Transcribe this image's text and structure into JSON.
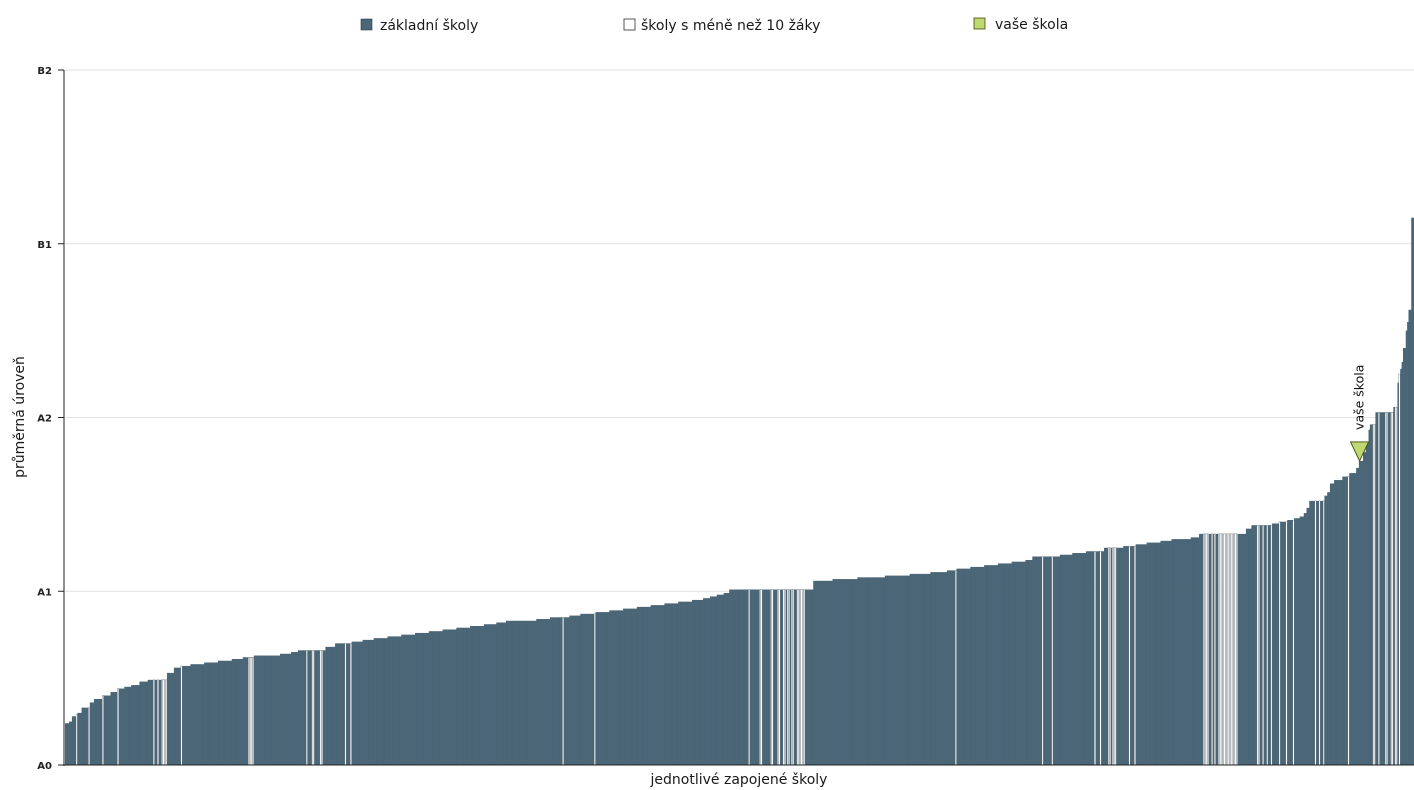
{
  "chart_data": {
    "type": "bar",
    "title": "",
    "xlabel": "jednotlivé zapojené školy",
    "ylabel": "průměrná úroveň",
    "y_ticks": [
      "A0",
      "A1",
      "A2",
      "B1",
      "B2"
    ],
    "ylim": [
      0,
      4
    ],
    "grid": true,
    "legend_placement": "top",
    "legend": [
      {
        "key": "zs",
        "label": "základní školy",
        "color": "#4a6677"
      },
      {
        "key": "small",
        "label": "školy s méně než 10 žáky",
        "color": "#ffffff"
      },
      {
        "key": "yours",
        "label": "vaše škola",
        "color": "#bfd870"
      }
    ],
    "segments": [
      {
        "value": 0.24,
        "count": 3,
        "kind": "zs"
      },
      {
        "value": 0.25,
        "count": 2,
        "kind": "zs"
      },
      {
        "value": 0.28,
        "count": 3,
        "kind": "zs"
      },
      {
        "value": 0.29,
        "count": 1,
        "kind": "small"
      },
      {
        "value": 0.3,
        "count": 3,
        "kind": "zs"
      },
      {
        "value": 0.33,
        "count": 5,
        "kind": "zs"
      },
      {
        "value": 0.33,
        "count": 1,
        "kind": "small"
      },
      {
        "value": 0.36,
        "count": 3,
        "kind": "zs"
      },
      {
        "value": 0.38,
        "count": 6,
        "kind": "zs"
      },
      {
        "value": 0.4,
        "count": 1,
        "kind": "small"
      },
      {
        "value": 0.4,
        "count": 5,
        "kind": "zs"
      },
      {
        "value": 0.42,
        "count": 5,
        "kind": "zs"
      },
      {
        "value": 0.44,
        "count": 1,
        "kind": "small"
      },
      {
        "value": 0.44,
        "count": 4,
        "kind": "zs"
      },
      {
        "value": 0.45,
        "count": 5,
        "kind": "zs"
      },
      {
        "value": 0.46,
        "count": 6,
        "kind": "zs"
      },
      {
        "value": 0.48,
        "count": 6,
        "kind": "zs"
      },
      {
        "value": 0.49,
        "count": 4,
        "kind": "zs"
      },
      {
        "value": 0.49,
        "count": 1,
        "kind": "small"
      },
      {
        "value": 0.49,
        "count": 2,
        "kind": "zs"
      },
      {
        "value": 0.49,
        "count": 1,
        "kind": "small"
      },
      {
        "value": 0.49,
        "count": 2,
        "kind": "zs"
      },
      {
        "value": 0.49,
        "count": 4,
        "kind": "small"
      },
      {
        "value": 0.53,
        "count": 5,
        "kind": "zs"
      },
      {
        "value": 0.56,
        "count": 5,
        "kind": "zs"
      },
      {
        "value": 0.57,
        "count": 1,
        "kind": "small"
      },
      {
        "value": 0.57,
        "count": 6,
        "kind": "zs"
      },
      {
        "value": 0.58,
        "count": 10,
        "kind": "zs"
      },
      {
        "value": 0.59,
        "count": 10,
        "kind": "zs"
      },
      {
        "value": 0.6,
        "count": 10,
        "kind": "zs"
      },
      {
        "value": 0.61,
        "count": 8,
        "kind": "zs"
      },
      {
        "value": 0.62,
        "count": 4,
        "kind": "zs"
      },
      {
        "value": 0.62,
        "count": 4,
        "kind": "small"
      },
      {
        "value": 0.63,
        "count": 8,
        "kind": "zs"
      },
      {
        "value": 0.63,
        "count": 11,
        "kind": "zs"
      },
      {
        "value": 0.64,
        "count": 8,
        "kind": "zs"
      },
      {
        "value": 0.65,
        "count": 5,
        "kind": "zs"
      },
      {
        "value": 0.66,
        "count": 6,
        "kind": "zs"
      },
      {
        "value": 0.66,
        "count": 1,
        "kind": "small"
      },
      {
        "value": 0.66,
        "count": 3,
        "kind": "zs"
      },
      {
        "value": 0.66,
        "count": 2,
        "kind": "small"
      },
      {
        "value": 0.66,
        "count": 4,
        "kind": "zs"
      },
      {
        "value": 0.66,
        "count": 2,
        "kind": "small"
      },
      {
        "value": 0.66,
        "count": 2,
        "kind": "zs"
      },
      {
        "value": 0.68,
        "count": 7,
        "kind": "zs"
      },
      {
        "value": 0.7,
        "count": 7,
        "kind": "zs"
      },
      {
        "value": 0.7,
        "count": 1,
        "kind": "small"
      },
      {
        "value": 0.7,
        "count": 3,
        "kind": "zs"
      },
      {
        "value": 0.7,
        "count": 1,
        "kind": "small"
      },
      {
        "value": 0.71,
        "count": 8,
        "kind": "zs"
      },
      {
        "value": 0.72,
        "count": 8,
        "kind": "zs"
      },
      {
        "value": 0.73,
        "count": 10,
        "kind": "zs"
      },
      {
        "value": 0.74,
        "count": 10,
        "kind": "zs"
      },
      {
        "value": 0.75,
        "count": 10,
        "kind": "zs"
      },
      {
        "value": 0.76,
        "count": 10,
        "kind": "zs"
      },
      {
        "value": 0.77,
        "count": 10,
        "kind": "zs"
      },
      {
        "value": 0.78,
        "count": 10,
        "kind": "zs"
      },
      {
        "value": 0.79,
        "count": 10,
        "kind": "zs"
      },
      {
        "value": 0.8,
        "count": 10,
        "kind": "zs"
      },
      {
        "value": 0.81,
        "count": 9,
        "kind": "zs"
      },
      {
        "value": 0.82,
        "count": 7,
        "kind": "zs"
      },
      {
        "value": 0.83,
        "count": 8,
        "kind": "zs"
      },
      {
        "value": 0.83,
        "count": 14,
        "kind": "zs"
      },
      {
        "value": 0.84,
        "count": 10,
        "kind": "zs"
      },
      {
        "value": 0.85,
        "count": 9,
        "kind": "zs"
      },
      {
        "value": 0.85,
        "count": 1,
        "kind": "small"
      },
      {
        "value": 0.85,
        "count": 4,
        "kind": "zs"
      },
      {
        "value": 0.86,
        "count": 8,
        "kind": "zs"
      },
      {
        "value": 0.87,
        "count": 10,
        "kind": "zs"
      },
      {
        "value": 0.87,
        "count": 1,
        "kind": "small"
      },
      {
        "value": 0.88,
        "count": 10,
        "kind": "zs"
      },
      {
        "value": 0.89,
        "count": 10,
        "kind": "zs"
      },
      {
        "value": 0.9,
        "count": 10,
        "kind": "zs"
      },
      {
        "value": 0.91,
        "count": 10,
        "kind": "zs"
      },
      {
        "value": 0.92,
        "count": 10,
        "kind": "zs"
      },
      {
        "value": 0.93,
        "count": 10,
        "kind": "zs"
      },
      {
        "value": 0.94,
        "count": 10,
        "kind": "zs"
      },
      {
        "value": 0.95,
        "count": 8,
        "kind": "zs"
      },
      {
        "value": 0.96,
        "count": 5,
        "kind": "zs"
      },
      {
        "value": 0.97,
        "count": 5,
        "kind": "zs"
      },
      {
        "value": 0.98,
        "count": 5,
        "kind": "zs"
      },
      {
        "value": 0.99,
        "count": 4,
        "kind": "zs"
      },
      {
        "value": 1.01,
        "count": 14,
        "kind": "zs"
      },
      {
        "value": 1.01,
        "count": 1,
        "kind": "small"
      },
      {
        "value": 1.01,
        "count": 7,
        "kind": "zs"
      },
      {
        "value": 1.01,
        "count": 2,
        "kind": "small"
      },
      {
        "value": 1.01,
        "count": 6,
        "kind": "zs"
      },
      {
        "value": 1.01,
        "count": 2,
        "kind": "small"
      },
      {
        "value": 1.01,
        "count": 3,
        "kind": "zs"
      },
      {
        "value": 1.01,
        "count": 2,
        "kind": "small"
      },
      {
        "value": 1.01,
        "count": 2,
        "kind": "zs"
      },
      {
        "value": 1.01,
        "count": 2,
        "kind": "small"
      },
      {
        "value": 1.01,
        "count": 1,
        "kind": "zs"
      },
      {
        "value": 1.01,
        "count": 2,
        "kind": "small"
      },
      {
        "value": 1.01,
        "count": 1,
        "kind": "zs"
      },
      {
        "value": 1.01,
        "count": 2,
        "kind": "small"
      },
      {
        "value": 1.01,
        "count": 2,
        "kind": "zs"
      },
      {
        "value": 1.01,
        "count": 6,
        "kind": "small"
      },
      {
        "value": 1.01,
        "count": 6,
        "kind": "zs"
      },
      {
        "value": 1.06,
        "count": 14,
        "kind": "zs"
      },
      {
        "value": 1.07,
        "count": 18,
        "kind": "zs"
      },
      {
        "value": 1.08,
        "count": 20,
        "kind": "zs"
      },
      {
        "value": 1.09,
        "count": 18,
        "kind": "zs"
      },
      {
        "value": 1.1,
        "count": 15,
        "kind": "zs"
      },
      {
        "value": 1.11,
        "count": 12,
        "kind": "zs"
      },
      {
        "value": 1.12,
        "count": 6,
        "kind": "zs"
      },
      {
        "value": 1.12,
        "count": 1,
        "kind": "small"
      },
      {
        "value": 1.13,
        "count": 10,
        "kind": "zs"
      },
      {
        "value": 1.14,
        "count": 10,
        "kind": "zs"
      },
      {
        "value": 1.15,
        "count": 10,
        "kind": "zs"
      },
      {
        "value": 1.16,
        "count": 10,
        "kind": "zs"
      },
      {
        "value": 1.17,
        "count": 10,
        "kind": "zs"
      },
      {
        "value": 1.18,
        "count": 5,
        "kind": "zs"
      },
      {
        "value": 1.2,
        "count": 7,
        "kind": "zs"
      },
      {
        "value": 1.2,
        "count": 1,
        "kind": "small"
      },
      {
        "value": 1.2,
        "count": 6,
        "kind": "zs"
      },
      {
        "value": 1.2,
        "count": 1,
        "kind": "small"
      },
      {
        "value": 1.2,
        "count": 5,
        "kind": "zs"
      },
      {
        "value": 1.21,
        "count": 9,
        "kind": "zs"
      },
      {
        "value": 1.22,
        "count": 10,
        "kind": "zs"
      },
      {
        "value": 1.23,
        "count": 6,
        "kind": "zs"
      },
      {
        "value": 1.23,
        "count": 1,
        "kind": "small"
      },
      {
        "value": 1.23,
        "count": 3,
        "kind": "zs"
      },
      {
        "value": 1.23,
        "count": 1,
        "kind": "small"
      },
      {
        "value": 1.23,
        "count": 2,
        "kind": "zs"
      },
      {
        "value": 1.25,
        "count": 3,
        "kind": "zs"
      },
      {
        "value": 1.25,
        "count": 2,
        "kind": "small"
      },
      {
        "value": 1.25,
        "count": 1,
        "kind": "zs"
      },
      {
        "value": 1.25,
        "count": 3,
        "kind": "small"
      },
      {
        "value": 1.25,
        "count": 5,
        "kind": "zs"
      },
      {
        "value": 1.26,
        "count": 4,
        "kind": "zs"
      },
      {
        "value": 1.26,
        "count": 1,
        "kind": "small"
      },
      {
        "value": 1.26,
        "count": 3,
        "kind": "zs"
      },
      {
        "value": 1.26,
        "count": 1,
        "kind": "small"
      },
      {
        "value": 1.27,
        "count": 8,
        "kind": "zs"
      },
      {
        "value": 1.28,
        "count": 10,
        "kind": "zs"
      },
      {
        "value": 1.29,
        "count": 8,
        "kind": "zs"
      },
      {
        "value": 1.3,
        "count": 10,
        "kind": "zs"
      },
      {
        "value": 1.3,
        "count": 4,
        "kind": "zs"
      },
      {
        "value": 1.31,
        "count": 4,
        "kind": "zs"
      },
      {
        "value": 1.31,
        "count": 2,
        "kind": "zs"
      },
      {
        "value": 1.33,
        "count": 3,
        "kind": "zs"
      },
      {
        "value": 1.33,
        "count": 4,
        "kind": "small"
      },
      {
        "value": 1.33,
        "count": 2,
        "kind": "zs"
      },
      {
        "value": 1.33,
        "count": 1,
        "kind": "small"
      },
      {
        "value": 1.33,
        "count": 1,
        "kind": "zs"
      },
      {
        "value": 1.33,
        "count": 1,
        "kind": "small"
      },
      {
        "value": 1.33,
        "count": 2,
        "kind": "zs"
      },
      {
        "value": 1.33,
        "count": 14,
        "kind": "small"
      },
      {
        "value": 1.33,
        "count": 6,
        "kind": "zs"
      },
      {
        "value": 1.36,
        "count": 4,
        "kind": "zs"
      },
      {
        "value": 1.38,
        "count": 4,
        "kind": "zs"
      },
      {
        "value": 1.38,
        "count": 2,
        "kind": "small"
      },
      {
        "value": 1.38,
        "count": 2,
        "kind": "zs"
      },
      {
        "value": 1.38,
        "count": 1,
        "kind": "small"
      },
      {
        "value": 1.38,
        "count": 2,
        "kind": "zs"
      },
      {
        "value": 1.38,
        "count": 1,
        "kind": "small"
      },
      {
        "value": 1.38,
        "count": 2,
        "kind": "zs"
      },
      {
        "value": 1.38,
        "count": 1,
        "kind": "small"
      },
      {
        "value": 1.39,
        "count": 5,
        "kind": "zs"
      },
      {
        "value": 1.4,
        "count": 1,
        "kind": "small"
      },
      {
        "value": 1.4,
        "count": 4,
        "kind": "zs"
      },
      {
        "value": 1.4,
        "count": 1,
        "kind": "small"
      },
      {
        "value": 1.41,
        "count": 4,
        "kind": "zs"
      },
      {
        "value": 1.41,
        "count": 1,
        "kind": "small"
      },
      {
        "value": 1.42,
        "count": 4,
        "kind": "zs"
      },
      {
        "value": 1.43,
        "count": 3,
        "kind": "zs"
      },
      {
        "value": 1.45,
        "count": 2,
        "kind": "zs"
      },
      {
        "value": 1.48,
        "count": 2,
        "kind": "zs"
      },
      {
        "value": 1.52,
        "count": 4,
        "kind": "zs"
      },
      {
        "value": 1.52,
        "count": 1,
        "kind": "small"
      },
      {
        "value": 1.52,
        "count": 2,
        "kind": "zs"
      },
      {
        "value": 1.52,
        "count": 1,
        "kind": "small"
      },
      {
        "value": 1.52,
        "count": 2,
        "kind": "zs"
      },
      {
        "value": 1.52,
        "count": 1,
        "kind": "small"
      },
      {
        "value": 1.55,
        "count": 2,
        "kind": "zs"
      },
      {
        "value": 1.57,
        "count": 2,
        "kind": "zs"
      },
      {
        "value": 1.62,
        "count": 3,
        "kind": "zs"
      },
      {
        "value": 1.64,
        "count": 6,
        "kind": "zs"
      },
      {
        "value": 1.66,
        "count": 4,
        "kind": "zs"
      },
      {
        "value": 1.66,
        "count": 1,
        "kind": "small"
      },
      {
        "value": 1.68,
        "count": 5,
        "kind": "zs"
      },
      {
        "value": 1.71,
        "count": 2,
        "kind": "zs"
      },
      {
        "value": 1.75,
        "count": 3,
        "kind": "zs"
      },
      {
        "value": 1.8,
        "count": 2,
        "kind": "zs"
      },
      {
        "value": 1.85,
        "count": 2,
        "kind": "zs"
      },
      {
        "value": 1.93,
        "count": 1,
        "kind": "zs"
      },
      {
        "value": 1.96,
        "count": 2,
        "kind": "zs"
      },
      {
        "value": 1.96,
        "count": 2,
        "kind": "small"
      },
      {
        "value": 2.03,
        "count": 2,
        "kind": "zs"
      },
      {
        "value": 2.03,
        "count": 1,
        "kind": "small"
      },
      {
        "value": 2.03,
        "count": 4,
        "kind": "zs"
      },
      {
        "value": 2.03,
        "count": 2,
        "kind": "small"
      },
      {
        "value": 2.03,
        "count": 2,
        "kind": "zs"
      },
      {
        "value": 2.03,
        "count": 2,
        "kind": "small"
      },
      {
        "value": 2.06,
        "count": 1,
        "kind": "zs"
      },
      {
        "value": 2.06,
        "count": 2,
        "kind": "small"
      },
      {
        "value": 2.2,
        "count": 1,
        "kind": "zs"
      },
      {
        "value": 2.25,
        "count": 1,
        "kind": "small"
      },
      {
        "value": 2.28,
        "count": 1,
        "kind": "zs"
      },
      {
        "value": 2.32,
        "count": 1,
        "kind": "zs"
      },
      {
        "value": 2.4,
        "count": 2,
        "kind": "zs"
      },
      {
        "value": 2.5,
        "count": 1,
        "kind": "zs"
      },
      {
        "value": 2.55,
        "count": 1,
        "kind": "zs"
      },
      {
        "value": 2.62,
        "count": 2,
        "kind": "zs"
      },
      {
        "value": 3.15,
        "count": 2,
        "kind": "zs"
      }
    ],
    "your_school": {
      "label": "vaše škola",
      "value": 1.75
    }
  }
}
